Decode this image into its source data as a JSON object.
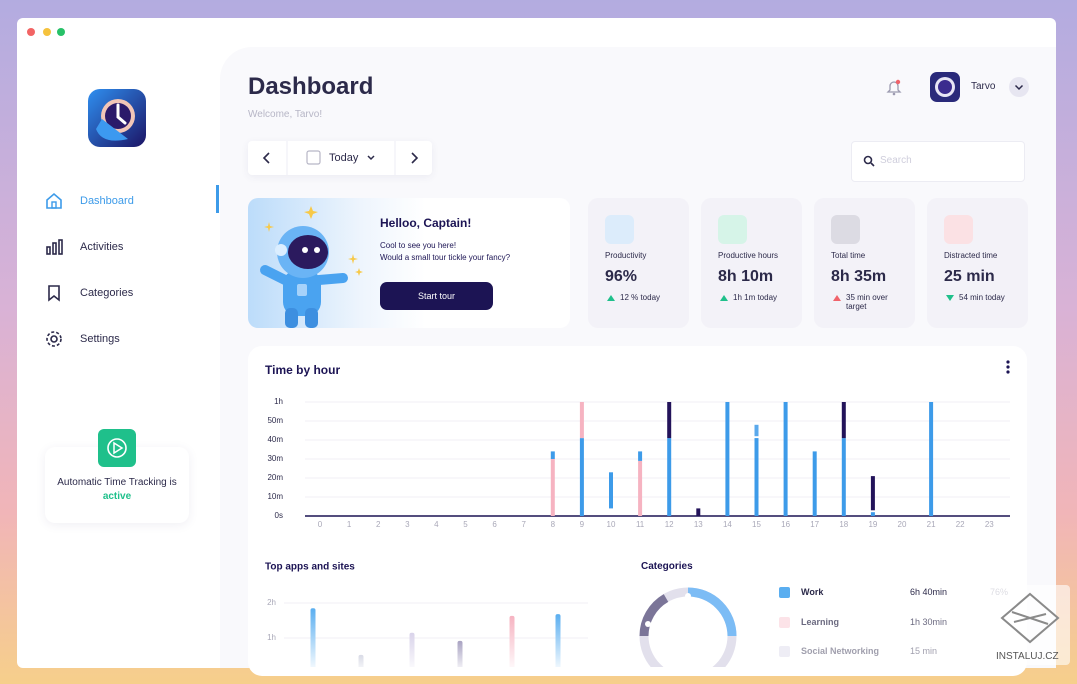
{
  "sidebar": {
    "nav": [
      "Dashboard",
      "Activities",
      "Categories",
      "Settings"
    ],
    "tracking_text": "Automatic Time Tracking is",
    "tracking_status": "active"
  },
  "header": {
    "title": "Dashboard",
    "subtitle": "Welcome, Tarvo!",
    "user": "Tarvo"
  },
  "date_picker": {
    "label": "Today"
  },
  "search": {
    "placeholder": "Search"
  },
  "welcome": {
    "title": "Helloo, Captain!",
    "lines": [
      "Cool to see you here!",
      "Would a small tour tickle your fancy?"
    ],
    "button": "Start tour"
  },
  "stats": [
    {
      "label": "Productivity",
      "value": "96%",
      "change": "12 % today",
      "arrow_color": "#1fc08b",
      "icon_color": "#dcecfb"
    },
    {
      "label": "Productive hours",
      "value": "8h 10m",
      "change": "1h 1m today",
      "arrow_color": "#1fc08b",
      "icon_color": "#d6f4e8"
    },
    {
      "label": "Total time",
      "value": "8h 35m",
      "change": "35 min over target",
      "arrow_color": "#f0636b",
      "icon_color": "#dcdbe3"
    },
    {
      "label": "Distracted time",
      "value": "25 min",
      "change": "54 min today",
      "arrow_color": "#1fc08b",
      "icon_color": "#fbe1e4"
    }
  ],
  "chart_data": [
    {
      "type": "bar",
      "title": "Time by hour",
      "categories": [
        "0",
        "1",
        "2",
        "3",
        "4",
        "5",
        "6",
        "7",
        "8",
        "9",
        "10",
        "11",
        "12",
        "13",
        "14",
        "15",
        "16",
        "17",
        "18",
        "19",
        "20",
        "21",
        "22",
        "23"
      ],
      "segments": [
        {
          "x": 8,
          "from": 0,
          "to": 30,
          "color": "#f6b3c1"
        },
        {
          "x": 8,
          "from": 30,
          "to": 34,
          "color": "#3d9be9"
        },
        {
          "x": 9,
          "from": 0,
          "to": 41,
          "color": "#3d9be9"
        },
        {
          "x": 9,
          "from": 41,
          "to": 60,
          "color": "#f6b3c1"
        },
        {
          "x": 10,
          "from": 4,
          "to": 23,
          "color": "#3d9be9"
        },
        {
          "x": 11,
          "from": 0,
          "to": 29,
          "color": "#f6b3c1"
        },
        {
          "x": 11,
          "from": 29,
          "to": 34,
          "color": "#3d9be9"
        },
        {
          "x": 12,
          "from": 0,
          "to": 41,
          "color": "#3d9be9"
        },
        {
          "x": 12,
          "from": 41,
          "to": 60,
          "color": "#23135a"
        },
        {
          "x": 13,
          "from": 0,
          "to": 4,
          "color": "#23135a"
        },
        {
          "x": 14,
          "from": 0,
          "to": 60,
          "color": "#3d9be9"
        },
        {
          "x": 15,
          "from": 0,
          "to": 41,
          "color": "#3d9be9"
        },
        {
          "x": 15,
          "from": 42,
          "to": 48,
          "color": "#5aa9ec"
        },
        {
          "x": 16,
          "from": 0,
          "to": 60,
          "color": "#3d9be9"
        },
        {
          "x": 17,
          "from": 0,
          "to": 34,
          "color": "#3d9be9"
        },
        {
          "x": 18,
          "from": 0,
          "to": 41,
          "color": "#3d9be9"
        },
        {
          "x": 18,
          "from": 41,
          "to": 60,
          "color": "#23135a"
        },
        {
          "x": 19,
          "from": 0,
          "to": 2,
          "color": "#3d9be9"
        },
        {
          "x": 19,
          "from": 3,
          "to": 21,
          "color": "#23135a"
        },
        {
          "x": 21,
          "from": 0,
          "to": 60,
          "color": "#3d9be9"
        }
      ],
      "ylim": [
        0,
        60
      ],
      "yticks": [
        {
          "value": 0,
          "label": "0s"
        },
        {
          "value": 10,
          "label": "10m"
        },
        {
          "value": 20,
          "label": "20m"
        },
        {
          "value": 30,
          "label": "30m"
        },
        {
          "value": 40,
          "label": "40m"
        },
        {
          "value": 50,
          "label": "50m"
        },
        {
          "value": 60,
          "label": "1h"
        }
      ],
      "grid": true
    },
    {
      "type": "bar",
      "title": "Top apps and sites",
      "values": [
        111,
        31,
        69,
        55,
        98,
        101
      ],
      "colors": [
        "#5aaef0",
        "#d9dbe6",
        "#d9d3ea",
        "#a9a3c2",
        "#f6b3c1",
        "#5aaef0"
      ],
      "ylim": [
        0,
        120
      ],
      "yticks": [
        {
          "value": 60,
          "label": "1h"
        },
        {
          "value": 120,
          "label": "2h"
        }
      ],
      "grid": true
    }
  ],
  "categories": {
    "title": "Categories",
    "rows": [
      {
        "name": "Work",
        "time": "6h 40min",
        "share": "76%",
        "color": "#5aaef0"
      },
      {
        "name": "Learning",
        "time": "1h 30min",
        "color": "#fbd7de"
      },
      {
        "name": "Social Networking",
        "time": "15 min",
        "color": "#d9d6e8"
      }
    ]
  },
  "watermark": "INSTALUJ.CZ"
}
